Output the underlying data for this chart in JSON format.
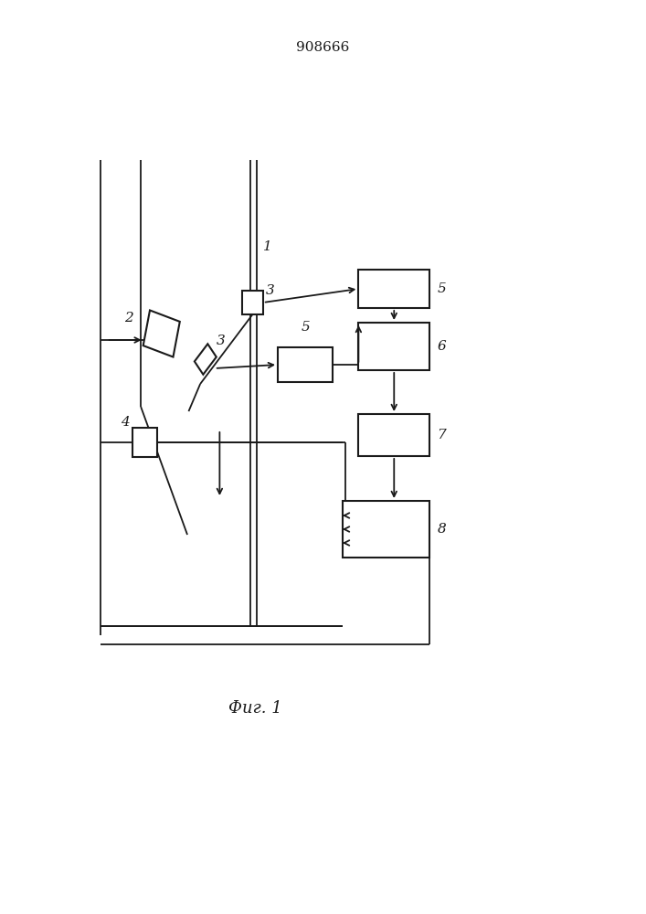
{
  "title": "908666",
  "caption": "Фиг. 1",
  "bg_color": "#ffffff",
  "line_color": "#1a1a1a",
  "title_fontsize": 11,
  "caption_fontsize": 13,
  "label_fontsize": 11
}
